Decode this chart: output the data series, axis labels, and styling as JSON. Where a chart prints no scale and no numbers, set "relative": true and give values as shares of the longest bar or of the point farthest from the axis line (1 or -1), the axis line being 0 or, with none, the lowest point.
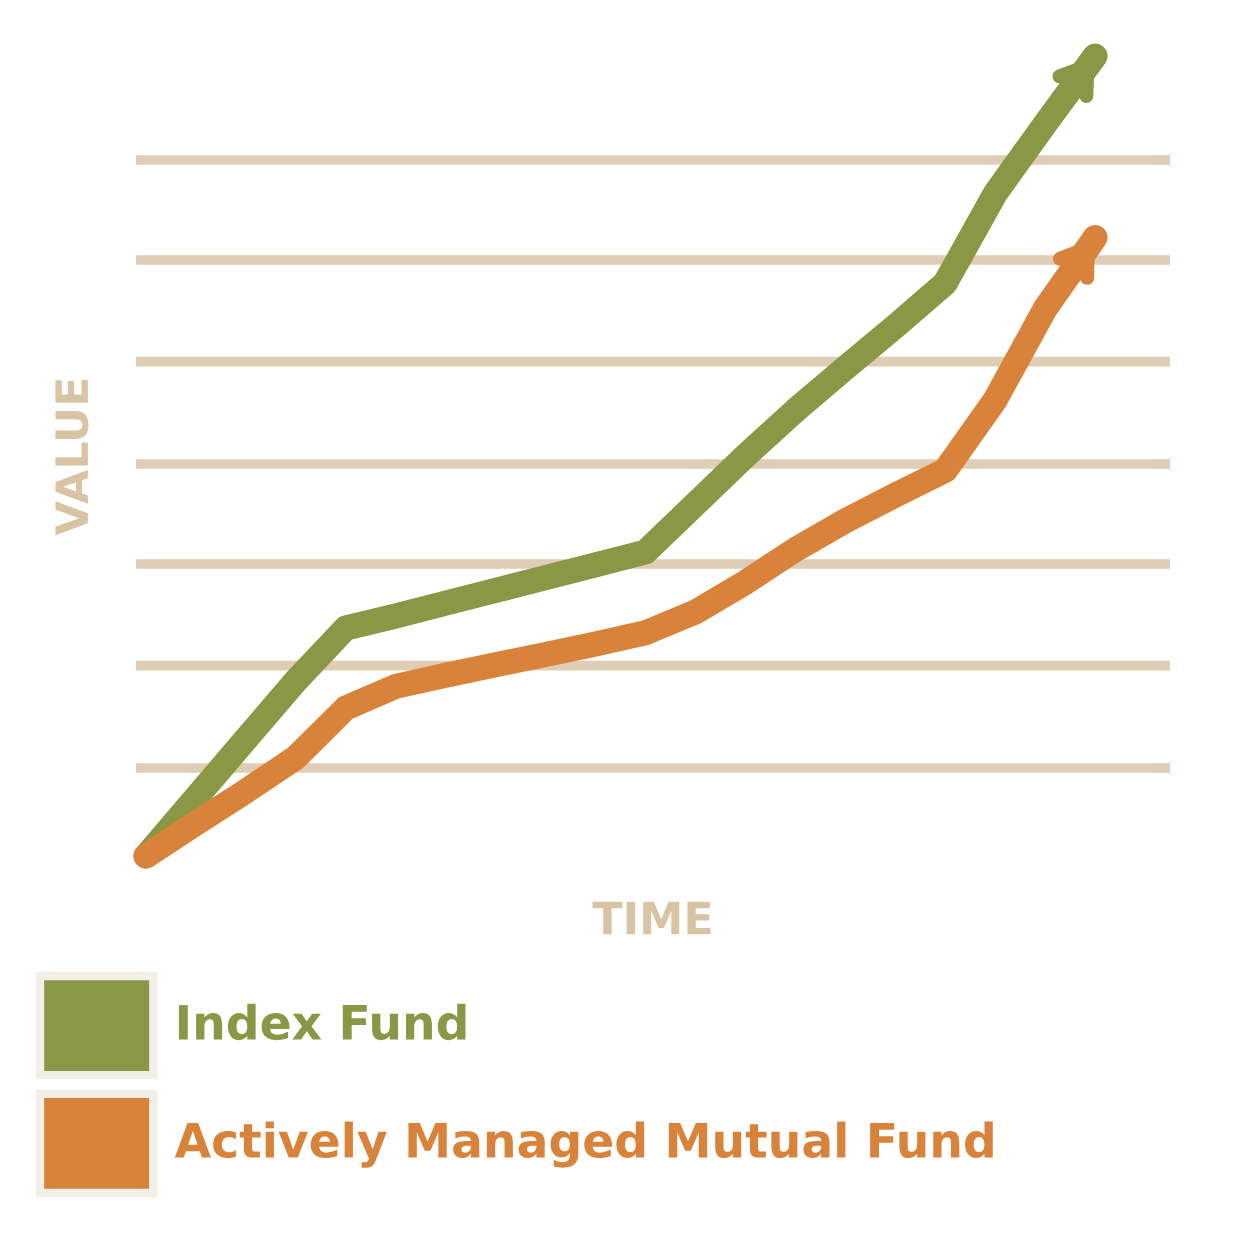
{
  "chart_data": {
    "type": "line",
    "relative": true,
    "xlabel": "TIME",
    "ylabel": "VALUE",
    "categories": [
      null,
      null,
      null,
      null,
      null,
      null,
      null,
      null,
      null,
      null,
      null,
      null,
      null,
      null,
      null,
      null,
      null,
      null,
      null,
      null
    ],
    "series": [
      {
        "name": "Index Fund",
        "color": "#8a9744",
        "values": [
          0,
          0.073,
          0.146,
          0.219,
          0.285,
          0.3,
          0.316,
          0.332,
          0.348,
          0.364,
          0.38,
          0.44,
          0.5,
          0.557,
          0.61,
          0.662,
          0.716,
          0.828,
          0.915,
          1.0
        ]
      },
      {
        "name": "Actively Managed Mutual Fund",
        "color": "#d9833a",
        "values": [
          0,
          0.041,
          0.081,
          0.123,
          0.185,
          0.212,
          0.226,
          0.239,
          0.252,
          0.265,
          0.279,
          0.305,
          0.342,
          0.383,
          0.419,
          0.451,
          0.482,
          0.57,
          0.684,
          0.773
        ]
      }
    ],
    "ref_lines": [
      {
        "axis": "y",
        "value": 0.11,
        "color": "#dfcdb6"
      },
      {
        "axis": "y",
        "value": 0.238,
        "color": "#dfcdb6"
      },
      {
        "axis": "y",
        "value": 0.365,
        "color": "#dfcdb6"
      },
      {
        "axis": "y",
        "value": 0.49,
        "color": "#dfcdb6"
      },
      {
        "axis": "y",
        "value": 0.618,
        "color": "#dfcdb6"
      },
      {
        "axis": "y",
        "value": 0.745,
        "color": "#dfcdb6"
      },
      {
        "axis": "y",
        "value": 0.87,
        "color": "#dfcdb6"
      }
    ],
    "legend": "bottom",
    "line_style": "solid"
  }
}
